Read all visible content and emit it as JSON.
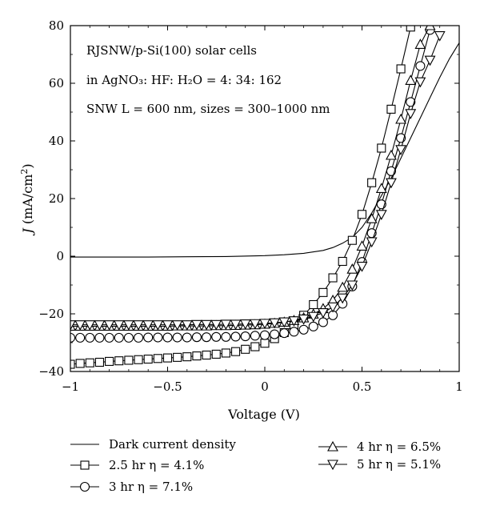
{
  "chart_data": {
    "type": "line",
    "title": "",
    "xlabel": "Voltage (V)",
    "ylabel": {
      "italic": "J",
      "rest": " (mA/cm",
      "sup": "2",
      "end": ")"
    },
    "xlim": [
      -1,
      1
    ],
    "ylim": [
      -40,
      80
    ],
    "x_ticks": [
      -1,
      -0.5,
      0,
      0.5,
      1
    ],
    "x_tick_labels": [
      "−1",
      "−0.5",
      "0",
      "0.5",
      "1"
    ],
    "y_ticks": [
      -40,
      -20,
      0,
      20,
      40,
      60,
      80
    ],
    "y_tick_labels": [
      "−40",
      "−20",
      "0",
      "20",
      "40",
      "60",
      "80"
    ],
    "grid": false,
    "annotations": [
      "RJSNW/p-Si(100) solar cells",
      "in AgNO₃: HF: H₂O = 4: 34: 162",
      "SNW L = 600 nm, sizes = 300–1000 nm"
    ],
    "series": [
      {
        "name": "Dark current density",
        "marker": "none",
        "x": [
          -1,
          -0.8,
          -0.6,
          -0.4,
          -0.2,
          0,
          0.1,
          0.2,
          0.3,
          0.35,
          0.4,
          0.45,
          0.5,
          0.55,
          0.6,
          0.65,
          0.7,
          0.75,
          0.8,
          0.85,
          0.9,
          0.95,
          1.0
        ],
        "y": [
          -0.3,
          -0.3,
          -0.3,
          -0.2,
          -0.1,
          0.2,
          0.5,
          1.0,
          2.0,
          3.0,
          4.5,
          6.5,
          10,
          15,
          21,
          27,
          34,
          41,
          48,
          55,
          62,
          68.5,
          74
        ]
      },
      {
        "name": "2.5 hr η = 4.1%",
        "marker": "square",
        "x": [
          -1,
          -0.95,
          -0.9,
          -0.85,
          -0.8,
          -0.75,
          -0.7,
          -0.65,
          -0.6,
          -0.55,
          -0.5,
          -0.45,
          -0.4,
          -0.35,
          -0.3,
          -0.25,
          -0.2,
          -0.15,
          -0.1,
          -0.05,
          0,
          0.05,
          0.1,
          0.15,
          0.2,
          0.25,
          0.3,
          0.35,
          0.4,
          0.45,
          0.5,
          0.55,
          0.6,
          0.65,
          0.7,
          0.75
        ],
        "y": [
          -37.5,
          -37.2,
          -37,
          -36.8,
          -36.5,
          -36.3,
          -36.1,
          -35.9,
          -35.7,
          -35.5,
          -35.3,
          -35.1,
          -34.9,
          -34.6,
          -34.3,
          -34,
          -33.6,
          -33.1,
          -32.3,
          -31.4,
          -30.2,
          -28.6,
          -26.5,
          -23.9,
          -20.5,
          -16.8,
          -12.6,
          -7.5,
          -1.8,
          5.5,
          14.5,
          25.5,
          37.5,
          51,
          65,
          79.5
        ]
      },
      {
        "name": "3 hr η = 7.1%",
        "marker": "circle",
        "x": [
          -1,
          -0.95,
          -0.9,
          -0.85,
          -0.8,
          -0.75,
          -0.7,
          -0.65,
          -0.6,
          -0.55,
          -0.5,
          -0.45,
          -0.4,
          -0.35,
          -0.3,
          -0.25,
          -0.2,
          -0.15,
          -0.1,
          -0.05,
          0,
          0.05,
          0.1,
          0.15,
          0.2,
          0.25,
          0.3,
          0.35,
          0.4,
          0.45,
          0.5,
          0.55,
          0.6,
          0.65,
          0.7,
          0.75,
          0.8,
          0.85
        ],
        "y": [
          -28.3,
          -28.3,
          -28.3,
          -28.3,
          -28.3,
          -28.3,
          -28.3,
          -28.3,
          -28.2,
          -28.2,
          -28.2,
          -28.2,
          -28.2,
          -28.1,
          -28.1,
          -28.0,
          -28.0,
          -27.9,
          -27.8,
          -27.6,
          -27.4,
          -27.1,
          -26.7,
          -26.2,
          -25.5,
          -24.4,
          -22.9,
          -20.5,
          -16.5,
          -10.5,
          -2.0,
          8.0,
          18.0,
          29.5,
          41.0,
          53.5,
          66.0,
          78.5
        ]
      },
      {
        "name": "4 hr η = 6.5%",
        "marker": "triangle-up",
        "x": [
          -1,
          -0.95,
          -0.9,
          -0.85,
          -0.8,
          -0.75,
          -0.7,
          -0.65,
          -0.6,
          -0.55,
          -0.5,
          -0.45,
          -0.4,
          -0.35,
          -0.3,
          -0.25,
          -0.2,
          -0.15,
          -0.1,
          -0.05,
          0,
          0.05,
          0.1,
          0.15,
          0.2,
          0.25,
          0.3,
          0.35,
          0.4,
          0.45,
          0.5,
          0.55,
          0.6,
          0.65,
          0.7,
          0.75,
          0.8,
          0.85
        ],
        "y": [
          -24.3,
          -24.3,
          -24.3,
          -24.3,
          -24.3,
          -24.3,
          -24.3,
          -24.3,
          -24.3,
          -24.3,
          -24.3,
          -24.2,
          -24.2,
          -24.2,
          -24.2,
          -24.1,
          -24.1,
          -24.0,
          -23.9,
          -23.8,
          -23.6,
          -23.3,
          -22.9,
          -22.3,
          -21.4,
          -20.1,
          -18.2,
          -15.3,
          -10.8,
          -4.5,
          3.5,
          13.0,
          23.5,
          35.0,
          47.5,
          61.0,
          73.5,
          80.0
        ]
      },
      {
        "name": "5 hr η = 5.1%",
        "marker": "triangle-down",
        "x": [
          -1,
          -0.95,
          -0.9,
          -0.85,
          -0.8,
          -0.75,
          -0.7,
          -0.65,
          -0.6,
          -0.55,
          -0.5,
          -0.45,
          -0.4,
          -0.35,
          -0.3,
          -0.25,
          -0.2,
          -0.15,
          -0.1,
          -0.05,
          0,
          0.05,
          0.1,
          0.15,
          0.2,
          0.25,
          0.3,
          0.35,
          0.4,
          0.45,
          0.5,
          0.55,
          0.6,
          0.65,
          0.7,
          0.75,
          0.8,
          0.85,
          0.9
        ],
        "y": [
          -23.8,
          -23.8,
          -23.8,
          -23.8,
          -23.8,
          -23.8,
          -23.8,
          -23.8,
          -23.8,
          -23.8,
          -23.8,
          -23.8,
          -23.8,
          -23.7,
          -23.7,
          -23.7,
          -23.6,
          -23.6,
          -23.5,
          -23.4,
          -23.3,
          -23.1,
          -22.8,
          -22.4,
          -21.8,
          -20.9,
          -19.6,
          -17.6,
          -14.5,
          -10.0,
          -3.5,
          5.0,
          14.5,
          25.5,
          37.0,
          49.5,
          60.5,
          68.0,
          76.5
        ]
      }
    ],
    "legend": {
      "placement": "bottom",
      "order_left": [
        0,
        1,
        2
      ],
      "order_right": [
        3,
        4
      ]
    },
    "colors": {
      "line": "#000000",
      "background": "#ffffff"
    }
  }
}
